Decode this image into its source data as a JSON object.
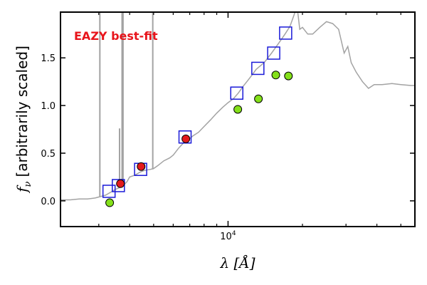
{
  "chart_data": {
    "type": "scatter",
    "title": "",
    "xlabel": "λ [Å]",
    "ylabel_math": "f",
    "ylabel_sub": "ν",
    "ylabel_text": "[arbitrarily scaled]",
    "xscale": "log",
    "xlim": [
      2100,
      57000
    ],
    "ylim": [
      -0.27,
      1.98
    ],
    "x_tick_labels": [
      {
        "x": 10000,
        "base": "10",
        "exp": "4"
      }
    ],
    "y_ticks": [
      0.0,
      0.5,
      1.0,
      1.5
    ],
    "y_tick_labels": [
      "0.0",
      "0.5",
      "1.0",
      "1.5"
    ],
    "annotation": "EAZY best-fit",
    "colors": {
      "template": "#a3a3a3",
      "annotation": "#e8141b",
      "model_box": "#1a1ad8",
      "obs_red": "#e31a1c",
      "obs_green": "#84e01a"
    },
    "series": [
      {
        "role": "template",
        "style": "line",
        "points": [
          [
            2100,
            0.01
          ],
          [
            2300,
            0.01
          ],
          [
            2500,
            0.02
          ],
          [
            2700,
            0.02
          ],
          [
            2900,
            0.03
          ],
          [
            3000,
            0.04
          ],
          [
            3200,
            0.06
          ],
          [
            3400,
            0.1
          ],
          [
            3500,
            0.12
          ],
          [
            3650,
            0.14
          ],
          [
            3800,
            0.17
          ],
          [
            3900,
            0.2
          ],
          [
            4000,
            0.25
          ],
          [
            4200,
            0.27
          ],
          [
            4400,
            0.3
          ],
          [
            4600,
            0.32
          ],
          [
            4861,
            0.33
          ],
          [
            5007,
            0.34
          ],
          [
            5200,
            0.37
          ],
          [
            5500,
            0.42
          ],
          [
            5800,
            0.45
          ],
          [
            6000,
            0.48
          ],
          [
            6300,
            0.55
          ],
          [
            6563,
            0.6
          ],
          [
            6900,
            0.64
          ],
          [
            7200,
            0.68
          ],
          [
            7600,
            0.72
          ],
          [
            8000,
            0.78
          ],
          [
            8500,
            0.85
          ],
          [
            9000,
            0.92
          ],
          [
            9500,
            0.98
          ],
          [
            10000,
            1.03
          ],
          [
            10500,
            1.07
          ],
          [
            11000,
            1.13
          ],
          [
            11500,
            1.2
          ],
          [
            12000,
            1.26
          ],
          [
            12500,
            1.32
          ],
          [
            13000,
            1.38
          ],
          [
            14000,
            1.45
          ],
          [
            15000,
            1.55
          ],
          [
            16000,
            1.65
          ],
          [
            17000,
            1.75
          ],
          [
            17800,
            1.83
          ],
          [
            18500,
            1.95
          ],
          [
            19000,
            2.05
          ],
          [
            19500,
            1.8
          ],
          [
            20000,
            1.82
          ],
          [
            21000,
            1.75
          ],
          [
            22000,
            1.75
          ],
          [
            23500,
            1.82
          ],
          [
            25000,
            1.88
          ],
          [
            26500,
            1.86
          ],
          [
            28000,
            1.8
          ],
          [
            29500,
            1.55
          ],
          [
            30500,
            1.62
          ],
          [
            31500,
            1.45
          ],
          [
            33000,
            1.35
          ],
          [
            35000,
            1.25
          ],
          [
            37000,
            1.18
          ],
          [
            39000,
            1.22
          ],
          [
            42000,
            1.22
          ],
          [
            46000,
            1.23
          ],
          [
            50000,
            1.22
          ],
          [
            55000,
            1.21
          ],
          [
            57000,
            1.21
          ]
        ],
        "emission_lines": [
          {
            "x": 3030,
            "y0": 0.04,
            "y1": 2.1
          },
          {
            "x": 3727,
            "y0": 0.15,
            "y1": 2.1
          },
          {
            "x": 3760,
            "y0": 0.15,
            "y1": 2.1
          },
          {
            "x": 3640,
            "y0": 0.15,
            "y1": 0.76
          },
          {
            "x": 4960,
            "y0": 0.33,
            "y1": 2.1
          }
        ]
      },
      {
        "role": "model_photometry",
        "style": "open_square",
        "x": [
          3300,
          3600,
          4430,
          6700,
          10850,
          13200,
          15300,
          17100
        ],
        "y": [
          0.1,
          0.16,
          0.33,
          0.67,
          1.13,
          1.39,
          1.55,
          1.76
        ]
      },
      {
        "role": "observed_detected",
        "style": "filled_circle_red",
        "x": [
          3670,
          4450,
          6750
        ],
        "y": [
          0.18,
          0.36,
          0.65
        ]
      },
      {
        "role": "observed_nir",
        "style": "filled_circle_green",
        "x": [
          3320,
          10950,
          13270,
          15600,
          17550
        ],
        "y": [
          -0.02,
          0.96,
          1.07,
          1.32,
          1.31
        ]
      }
    ]
  }
}
